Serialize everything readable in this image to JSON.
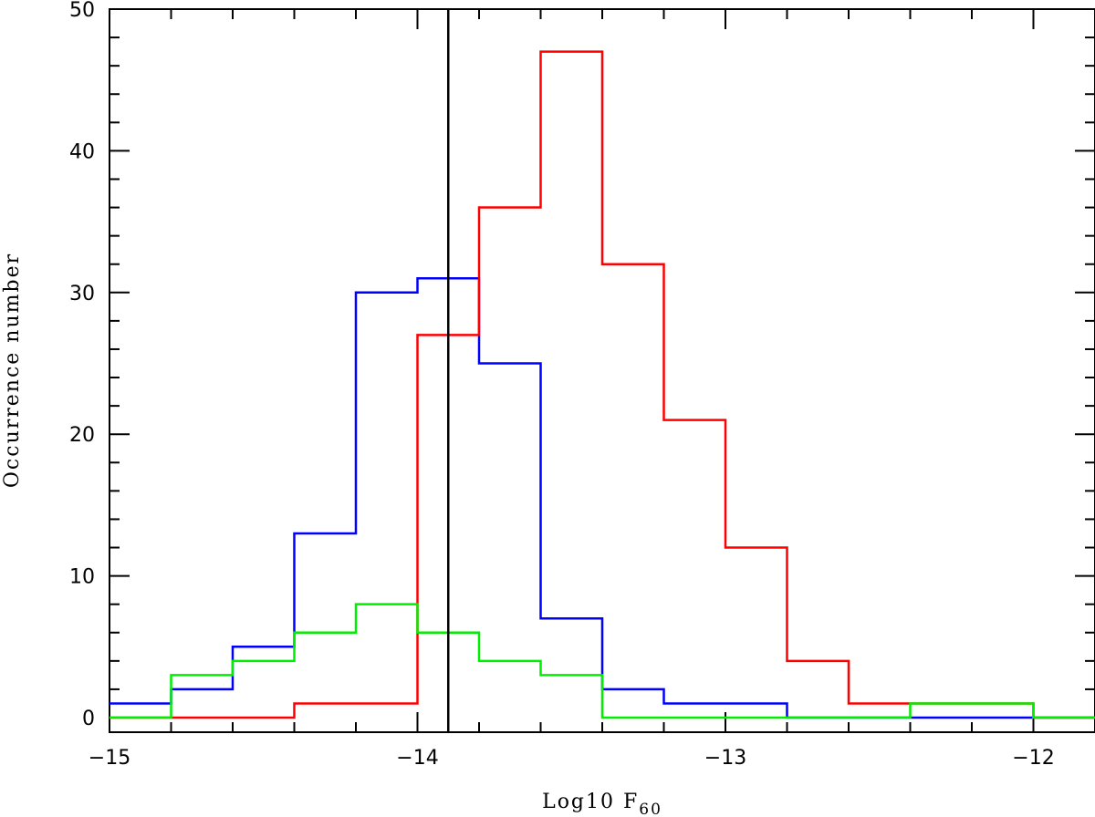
{
  "chart_data": {
    "type": "histogram",
    "xlabel": "Log10 F",
    "xlabel_subscript": "60",
    "ylabel": "Occurrence number",
    "xlim": [
      -15,
      -11.8
    ],
    "ylim": [
      0,
      50
    ],
    "x_major_ticks": [
      -15,
      -14,
      -13,
      -12
    ],
    "x_tick_labels": [
      "−15",
      "−14",
      "−13",
      "−12"
    ],
    "y_major_ticks": [
      0,
      10,
      20,
      30,
      40,
      50
    ],
    "y_tick_labels": [
      "0",
      "10",
      "20",
      "30",
      "40",
      "50"
    ],
    "bin_edges": [
      -15.0,
      -14.8,
      -14.6,
      -14.4,
      -14.2,
      -14.0,
      -13.8,
      -13.6,
      -13.4,
      -13.2,
      -13.0,
      -12.8,
      -12.6,
      -12.4,
      -12.2,
      -12.0,
      -11.8
    ],
    "series": [
      {
        "color": "#0000ff",
        "values": [
          1,
          2,
          5,
          13,
          30,
          31,
          25,
          7,
          2,
          1,
          1,
          0,
          0,
          0,
          0,
          0
        ]
      },
      {
        "color": "#ff0000",
        "values": [
          0,
          0,
          0,
          1,
          1,
          27,
          36,
          47,
          32,
          21,
          12,
          4,
          1,
          1,
          1,
          0
        ]
      },
      {
        "color": "#00ee00",
        "values": [
          0,
          3,
          4,
          6,
          8,
          6,
          4,
          3,
          0,
          0,
          0,
          0,
          0,
          1,
          1,
          0
        ]
      }
    ],
    "vertical_line": {
      "x": -13.9,
      "color": "#000000"
    },
    "grid": false
  }
}
